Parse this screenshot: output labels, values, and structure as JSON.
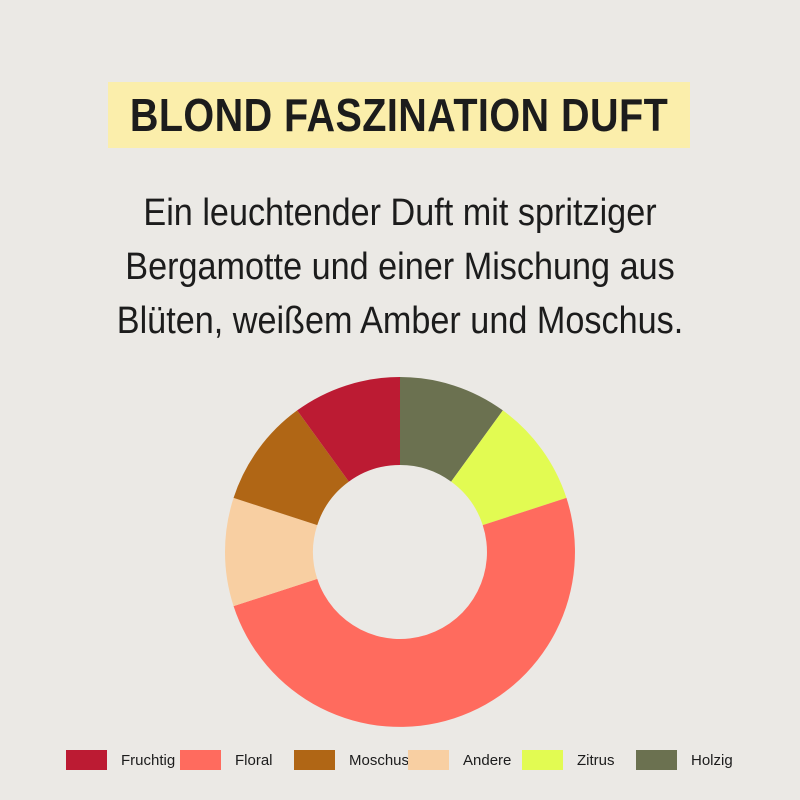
{
  "title": "BLOND FASZINATION DUFT",
  "description": [
    "Ein leuchtender Duft mit spritziger",
    "Bergamotte und einer Mischung aus",
    "Blüten, weißem Amber und Moschus."
  ],
  "colors": {
    "background": "#ebe9e5",
    "title_highlight": "#fbeeab"
  },
  "chart_data": {
    "type": "pie",
    "variant": "donut",
    "start": "top, clockwise",
    "legend_position": "bottom",
    "slices": [
      {
        "name": "Holzig",
        "value": 10,
        "color": "#6b7150"
      },
      {
        "name": "Zitrus",
        "value": 10,
        "color": "#e2fb52"
      },
      {
        "name": "Floral",
        "value": 50,
        "color": "#ff6b5e"
      },
      {
        "name": "Andere",
        "value": 10,
        "color": "#f8cfa2"
      },
      {
        "name": "Moschus",
        "value": 10,
        "color": "#b06615"
      },
      {
        "name": "Fruchtig",
        "value": 10,
        "color": "#bc1b33"
      }
    ],
    "legend": [
      "Fruchtig",
      "Floral",
      "Moschus",
      "Andere",
      "Zitrus",
      "Holzig"
    ]
  }
}
